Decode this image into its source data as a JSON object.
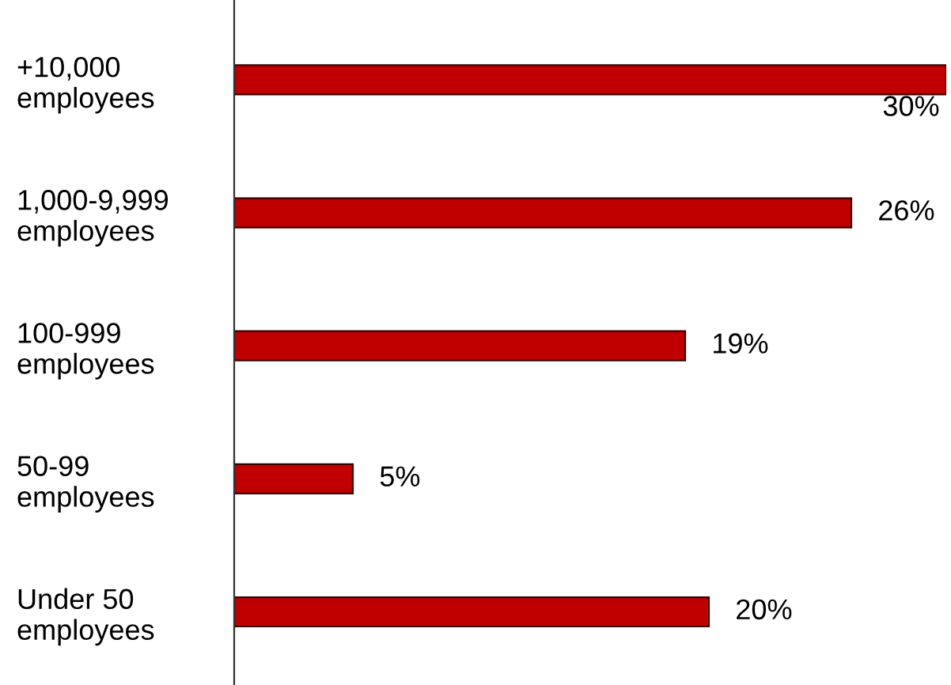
{
  "chart_data": {
    "type": "bar",
    "orientation": "horizontal",
    "categories": [
      "+10,000\nemployees",
      "1,000-9,999\nemployees",
      "100-999\nemployees",
      "50-99\nemployees",
      "Under 50\nemployees"
    ],
    "values": [
      30,
      26,
      19,
      5,
      20
    ],
    "value_labels": [
      "30%",
      "26%",
      "19%",
      "5%",
      "20%"
    ],
    "color": "#c00000",
    "grid": false,
    "legend": false
  }
}
